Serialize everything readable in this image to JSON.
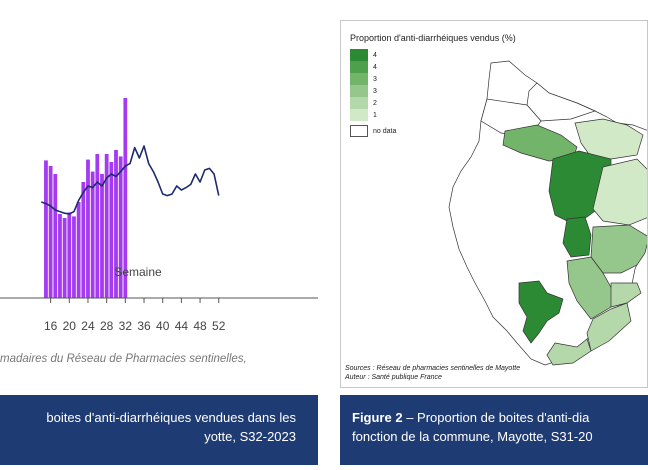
{
  "chart_data": {
    "type": "bar",
    "xlabel": "Semaine",
    "ylabel": "",
    "xlim": [
      10,
      54
    ],
    "ylim": [
      0,
      3
    ],
    "x_ticks": [
      "16",
      "20",
      "24",
      "28",
      "32",
      "36",
      "40",
      "44",
      "48",
      "52"
    ],
    "bar_color": "#a43bf0",
    "line_color": "#1c2a6e",
    "series": [
      {
        "values": [
          {
            "x": 15,
            "y": 1.72
          },
          {
            "x": 16,
            "y": 1.65
          },
          {
            "x": 17,
            "y": 1.55
          },
          {
            "x": 18,
            "y": 1.05
          },
          {
            "x": 19,
            "y": 1.0
          },
          {
            "x": 20,
            "y": 1.07
          },
          {
            "x": 21,
            "y": 1.02
          },
          {
            "x": 22,
            "y": 1.2
          },
          {
            "x": 23,
            "y": 1.45
          },
          {
            "x": 24,
            "y": 1.73
          },
          {
            "x": 25,
            "y": 1.58
          },
          {
            "x": 26,
            "y": 1.8
          },
          {
            "x": 27,
            "y": 1.55
          },
          {
            "x": 28,
            "y": 1.8
          },
          {
            "x": 29,
            "y": 1.7
          },
          {
            "x": 30,
            "y": 1.85
          },
          {
            "x": 31,
            "y": 1.77
          },
          {
            "x": 32,
            "y": 2.5
          }
        ]
      },
      {
        "values": [
          {
            "x": 14,
            "y": 1.2
          },
          {
            "x": 15,
            "y": 1.18
          },
          {
            "x": 16,
            "y": 1.15
          },
          {
            "x": 17,
            "y": 1.1
          },
          {
            "x": 18,
            "y": 1.08
          },
          {
            "x": 19,
            "y": 1.06
          },
          {
            "x": 20,
            "y": 1.05
          },
          {
            "x": 21,
            "y": 1.08
          },
          {
            "x": 22,
            "y": 1.22
          },
          {
            "x": 23,
            "y": 1.32
          },
          {
            "x": 24,
            "y": 1.4
          },
          {
            "x": 25,
            "y": 1.38
          },
          {
            "x": 26,
            "y": 1.45
          },
          {
            "x": 27,
            "y": 1.4
          },
          {
            "x": 28,
            "y": 1.5
          },
          {
            "x": 29,
            "y": 1.55
          },
          {
            "x": 30,
            "y": 1.52
          },
          {
            "x": 31,
            "y": 1.58
          },
          {
            "x": 32,
            "y": 1.65
          },
          {
            "x": 33,
            "y": 1.68
          },
          {
            "x": 34,
            "y": 1.88
          },
          {
            "x": 35,
            "y": 1.75
          },
          {
            "x": 36,
            "y": 1.9
          },
          {
            "x": 37,
            "y": 1.68
          },
          {
            "x": 38,
            "y": 1.58
          },
          {
            "x": 39,
            "y": 1.45
          },
          {
            "x": 40,
            "y": 1.3
          },
          {
            "x": 41,
            "y": 1.28
          },
          {
            "x": 42,
            "y": 1.3
          },
          {
            "x": 43,
            "y": 1.4
          },
          {
            "x": 44,
            "y": 1.35
          },
          {
            "x": 45,
            "y": 1.38
          },
          {
            "x": 46,
            "y": 1.42
          },
          {
            "x": 47,
            "y": 1.55
          },
          {
            "x": 48,
            "y": 1.45
          },
          {
            "x": 49,
            "y": 1.6
          },
          {
            "x": 50,
            "y": 1.62
          },
          {
            "x": 51,
            "y": 1.55
          },
          {
            "x": 52,
            "y": 1.28
          }
        ]
      }
    ]
  },
  "left_panel": {
    "source_note": "madaires du Réseau de Pharmacies sentinelles,",
    "caption": {
      "line1": "boites d'anti-diarrhéiques vendues dans les",
      "line2": "yotte, S32-2023"
    }
  },
  "right_panel": {
    "caption": {
      "fig_label": "Figure 2",
      "line1_rest": " –  Proportion de boites d'anti-dia",
      "line2": "fonction de la commune, Mayotte, S31-20"
    },
    "map": {
      "legend_title": "Proportion d'anti-diarrhéiques vendus (%)",
      "legend": [
        {
          "label": "4",
          "color": "#2d8a34"
        },
        {
          "label": "4",
          "color": "#4ea04c"
        },
        {
          "label": "3",
          "color": "#71b46a"
        },
        {
          "label": "3",
          "color": "#95c78c"
        },
        {
          "label": "2",
          "color": "#b5d8ab"
        },
        {
          "label": "1",
          "color": "#d2e9c8"
        }
      ],
      "no_data": {
        "label": "no data",
        "color": "#ffffff"
      },
      "sources_line1": "Sources : Réseau de pharmacies sentinelles de Mayotte",
      "sources_line2": "Auteur : Santé publique France"
    }
  }
}
